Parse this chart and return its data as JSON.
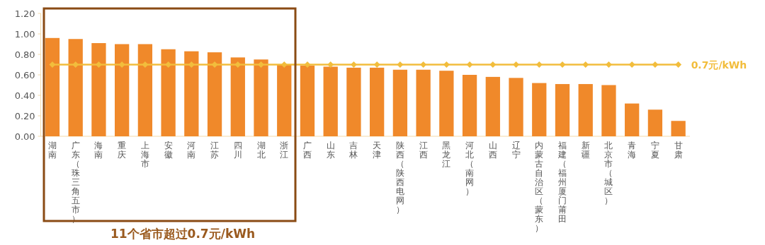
{
  "chart_data": {
    "type": "bar",
    "categories": [
      "湖南",
      "广东（珠三角五市）",
      "海南",
      "重庆",
      "上海市",
      "安徽",
      "河南",
      "江苏",
      "四川",
      "湖北",
      "浙江",
      "广西",
      "山东",
      "吉林",
      "天津",
      "陕西（陕西电网）",
      "江西",
      "黑龙江",
      "河北（南网）",
      "山西",
      "辽宁",
      "内蒙古自治区（蒙东）",
      "福建（福州厦门莆田",
      "新疆",
      "北京市（城区）",
      "青海",
      "宁夏",
      "甘肃"
    ],
    "series": [
      {
        "color": "#f0892a",
        "values": [
          0.96,
          0.95,
          0.91,
          0.9,
          0.9,
          0.85,
          0.83,
          0.82,
          0.77,
          0.75,
          0.7,
          0.69,
          0.68,
          0.67,
          0.67,
          0.65,
          0.65,
          0.64,
          0.6,
          0.58,
          0.57,
          0.52,
          0.51,
          0.51,
          0.5,
          0.32,
          0.26,
          0.15
        ]
      },
      {
        "type": "line",
        "name": "0.7元/kWh",
        "color": "#f2bd3c",
        "marker": "diamond",
        "values": [
          0.7,
          0.7,
          0.7,
          0.7,
          0.7,
          0.7,
          0.7,
          0.7,
          0.7,
          0.7,
          0.7,
          0.7,
          0.7,
          0.7,
          0.7,
          0.7,
          0.7,
          0.7,
          0.7,
          0.7,
          0.7,
          0.7,
          0.7,
          0.7,
          0.7,
          0.7,
          0.7,
          0.7
        ]
      }
    ],
    "ylim": [
      0,
      1.2
    ],
    "yticks": [
      {
        "value": 0,
        "label": "0.00"
      },
      {
        "value": 0.2,
        "label": "0.20"
      },
      {
        "value": 0.4,
        "label": "0.40"
      },
      {
        "value": 0.6,
        "label": "0.60"
      },
      {
        "value": 0.8,
        "label": "0.80"
      },
      {
        "value": 1.0,
        "label": "1.00"
      },
      {
        "value": 1.2,
        "label": "1.20"
      }
    ],
    "annotations": [
      "11个省市超过0.7元/kWh"
    ],
    "grid": false
  }
}
